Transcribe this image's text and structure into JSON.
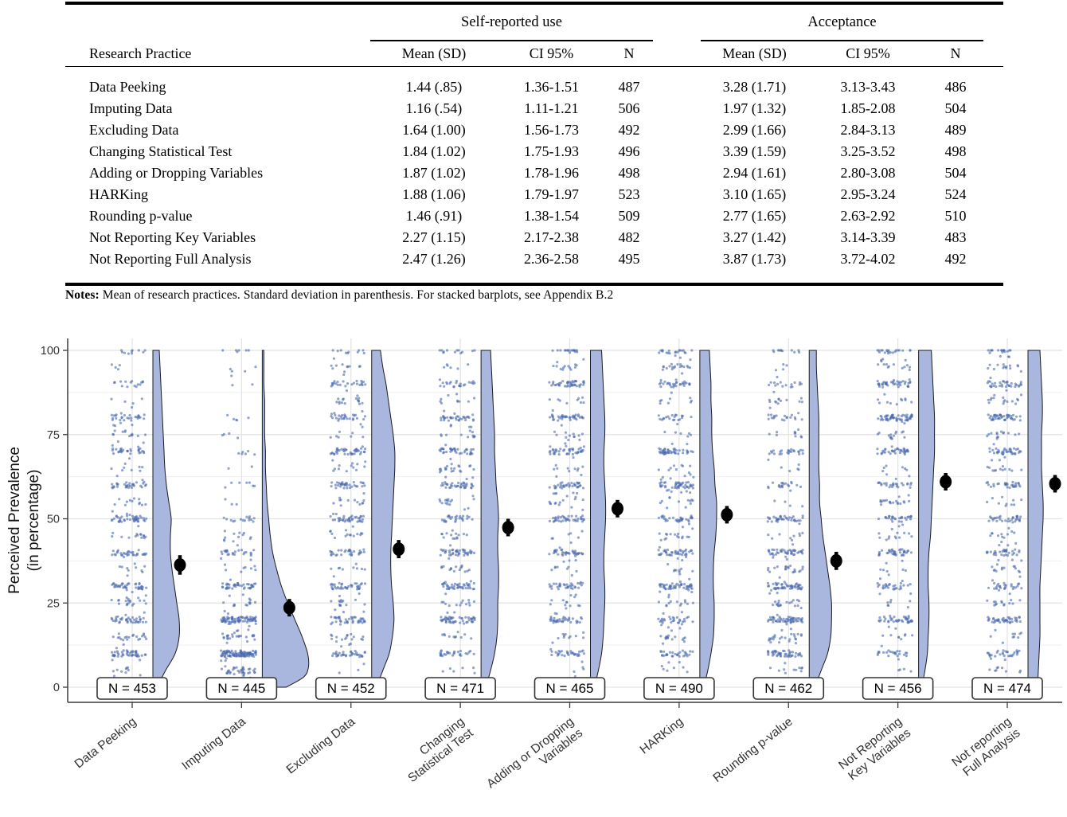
{
  "table": {
    "col_groups": [
      "Self-reported use",
      "Acceptance"
    ],
    "headers": [
      "Research Practice",
      "Mean (SD)",
      "CI 95%",
      "N",
      "Mean (SD)",
      "CI 95%",
      "N"
    ],
    "rows": [
      [
        "Data Peeking",
        "1.44 (.85)",
        "1.36-1.51",
        "487",
        "3.28 (1.71)",
        "3.13-3.43",
        "486"
      ],
      [
        "Imputing Data",
        "1.16 (.54)",
        "1.11-1.21",
        "506",
        "1.97 (1.32)",
        "1.85-2.08",
        "504"
      ],
      [
        "Excluding Data",
        "1.64 (1.00)",
        "1.56-1.73",
        "492",
        "2.99 (1.66)",
        "2.84-3.13",
        "489"
      ],
      [
        "Changing Statistical Test",
        "1.84 (1.02)",
        "1.75-1.93",
        "496",
        "3.39 (1.59)",
        "3.25-3.52",
        "498"
      ],
      [
        "Adding or Dropping Variables",
        "1.87 (1.02)",
        "1.78-1.96",
        "498",
        "2.94 (1.61)",
        "2.80-3.08",
        "504"
      ],
      [
        "HARKing",
        "1.88 (1.06)",
        "1.79-1.97",
        "523",
        "3.10 (1.65)",
        "2.95-3.24",
        "524"
      ],
      [
        "Rounding p-value",
        "1.46 (.91)",
        "1.38-1.54",
        "509",
        "2.77 (1.65)",
        "2.63-2.92",
        "510"
      ],
      [
        "Not Reporting Key Variables",
        "2.27 (1.15)",
        "2.17-2.38",
        "482",
        "3.27 (1.42)",
        "3.14-3.39",
        "483"
      ],
      [
        "Not Reporting Full Analysis",
        "2.47 (1.26)",
        "2.36-2.58",
        "495",
        "3.87 (1.73)",
        "3.72-4.02",
        "492"
      ]
    ],
    "notes_label": "Notes:",
    "notes_text": "Mean of research practices. Standard deviation in parenthesis. For stacked barplots, see Appendix B.2"
  },
  "chart_data": {
    "type": "raincloud (jitter scatter + half-violin density + mean with 95% CI)",
    "ylabel_line1": "Perceived Prevalence",
    "ylabel_line2": "(in percentage)",
    "ylim": [
      0,
      100
    ],
    "yticks": [
      0,
      25,
      50,
      75,
      100
    ],
    "yticks_minor": [
      12.5,
      37.5,
      62.5,
      87.5
    ],
    "grid": "on",
    "colors": {
      "point": "#4a69ad",
      "violin_fill": "#a9b7de",
      "violin_stroke": "#1c1c1c",
      "mean_marker": "#000000",
      "grid_major": "#e3e3e3",
      "grid_minor": "#efefef",
      "axis": "#3a3a3a",
      "label_box_fill": "#ffffff",
      "label_box_stroke": "#333333"
    },
    "groups": [
      {
        "label_lines": [
          "Data Peeking"
        ],
        "n": 453,
        "n_label": "N = 453",
        "mean": 36.3,
        "ci_low": 33.4,
        "ci_high": 39.2,
        "density": [
          [
            0,
            5
          ],
          [
            5,
            16
          ],
          [
            10,
            28
          ],
          [
            15,
            33
          ],
          [
            20,
            33
          ],
          [
            25,
            30
          ],
          [
            30,
            27
          ],
          [
            35,
            24
          ],
          [
            40,
            22
          ],
          [
            45,
            22
          ],
          [
            50,
            23
          ],
          [
            55,
            20
          ],
          [
            60,
            17
          ],
          [
            65,
            15
          ],
          [
            70,
            14
          ],
          [
            75,
            13
          ],
          [
            80,
            12
          ],
          [
            85,
            11
          ],
          [
            90,
            10
          ],
          [
            95,
            9
          ],
          [
            100,
            8
          ]
        ]
      },
      {
        "label_lines": [
          "Imputing Data"
        ],
        "n": 445,
        "n_label": "N = 445",
        "mean": 23.6,
        "ci_low": 21.0,
        "ci_high": 26.2,
        "density": [
          [
            0,
            30
          ],
          [
            3,
            52
          ],
          [
            6,
            58
          ],
          [
            10,
            57
          ],
          [
            15,
            50
          ],
          [
            20,
            41
          ],
          [
            25,
            32
          ],
          [
            30,
            24
          ],
          [
            35,
            18
          ],
          [
            40,
            13
          ],
          [
            45,
            10
          ],
          [
            50,
            8
          ],
          [
            55,
            6
          ],
          [
            60,
            5
          ],
          [
            65,
            4
          ],
          [
            70,
            4
          ],
          [
            75,
            3
          ],
          [
            80,
            3
          ],
          [
            85,
            3
          ],
          [
            90,
            2
          ],
          [
            95,
            2
          ],
          [
            100,
            2
          ]
        ]
      },
      {
        "label_lines": [
          "Excluding Data"
        ],
        "n": 452,
        "n_label": "N = 452",
        "mean": 41.0,
        "ci_low": 38.3,
        "ci_high": 43.7,
        "density": [
          [
            0,
            6
          ],
          [
            5,
            14
          ],
          [
            10,
            22
          ],
          [
            15,
            26
          ],
          [
            20,
            28
          ],
          [
            25,
            27
          ],
          [
            30,
            25
          ],
          [
            35,
            24
          ],
          [
            40,
            24
          ],
          [
            45,
            25
          ],
          [
            50,
            26
          ],
          [
            55,
            27
          ],
          [
            60,
            28
          ],
          [
            65,
            29
          ],
          [
            70,
            29
          ],
          [
            75,
            27
          ],
          [
            80,
            24
          ],
          [
            85,
            21
          ],
          [
            90,
            18
          ],
          [
            95,
            14
          ],
          [
            100,
            11
          ]
        ]
      },
      {
        "label_lines": [
          "Changing",
          "Statistical Test"
        ],
        "n": 471,
        "n_label": "N = 471",
        "mean": 47.4,
        "ci_low": 44.8,
        "ci_high": 50.0,
        "density": [
          [
            0,
            6
          ],
          [
            5,
            12
          ],
          [
            10,
            17
          ],
          [
            15,
            20
          ],
          [
            20,
            21
          ],
          [
            25,
            21
          ],
          [
            30,
            22
          ],
          [
            35,
            22
          ],
          [
            40,
            21
          ],
          [
            45,
            21
          ],
          [
            50,
            22
          ],
          [
            55,
            21
          ],
          [
            60,
            19
          ],
          [
            65,
            18
          ],
          [
            70,
            17
          ],
          [
            75,
            17
          ],
          [
            80,
            16
          ],
          [
            85,
            15
          ],
          [
            90,
            14
          ],
          [
            95,
            13
          ],
          [
            100,
            12
          ]
        ]
      },
      {
        "label_lines": [
          "Adding or Dropping",
          "Variables"
        ],
        "n": 465,
        "n_label": "N = 465",
        "mean": 53.0,
        "ci_low": 50.4,
        "ci_high": 55.6,
        "density": [
          [
            0,
            5
          ],
          [
            5,
            10
          ],
          [
            10,
            14
          ],
          [
            15,
            16
          ],
          [
            20,
            17
          ],
          [
            25,
            18
          ],
          [
            30,
            18
          ],
          [
            35,
            17
          ],
          [
            40,
            17
          ],
          [
            45,
            18
          ],
          [
            50,
            19
          ],
          [
            55,
            19
          ],
          [
            60,
            18
          ],
          [
            65,
            17
          ],
          [
            70,
            17
          ],
          [
            75,
            18
          ],
          [
            80,
            18
          ],
          [
            85,
            17
          ],
          [
            90,
            16
          ],
          [
            95,
            15
          ],
          [
            100,
            14
          ]
        ]
      },
      {
        "label_lines": [
          "HARKing"
        ],
        "n": 490,
        "n_label": "N = 490",
        "mean": 51.2,
        "ci_low": 48.6,
        "ci_high": 53.8,
        "density": [
          [
            0,
            5
          ],
          [
            5,
            10
          ],
          [
            10,
            14
          ],
          [
            15,
            17
          ],
          [
            20,
            18
          ],
          [
            25,
            18
          ],
          [
            30,
            17
          ],
          [
            35,
            17
          ],
          [
            40,
            18
          ],
          [
            45,
            20
          ],
          [
            50,
            21
          ],
          [
            55,
            21
          ],
          [
            60,
            19
          ],
          [
            65,
            18
          ],
          [
            70,
            16
          ],
          [
            75,
            15
          ],
          [
            80,
            15
          ],
          [
            85,
            14
          ],
          [
            90,
            14
          ],
          [
            95,
            13
          ],
          [
            100,
            12
          ]
        ]
      },
      {
        "label_lines": [
          "Rounding p-value"
        ],
        "n": 462,
        "n_label": "N = 462",
        "mean": 37.5,
        "ci_low": 34.8,
        "ci_high": 40.2,
        "density": [
          [
            0,
            7
          ],
          [
            5,
            15
          ],
          [
            10,
            23
          ],
          [
            15,
            27
          ],
          [
            20,
            28
          ],
          [
            25,
            28
          ],
          [
            30,
            26
          ],
          [
            35,
            23
          ],
          [
            40,
            20
          ],
          [
            45,
            17
          ],
          [
            50,
            15
          ],
          [
            55,
            13
          ],
          [
            60,
            13
          ],
          [
            65,
            12
          ],
          [
            70,
            12
          ],
          [
            75,
            12
          ],
          [
            80,
            12
          ],
          [
            85,
            11
          ],
          [
            90,
            10
          ],
          [
            95,
            9
          ],
          [
            100,
            9
          ]
        ]
      },
      {
        "label_lines": [
          "Not Reporting",
          "Key Variables"
        ],
        "n": 456,
        "n_label": "N = 456",
        "mean": 61.0,
        "ci_low": 58.4,
        "ci_high": 63.6,
        "density": [
          [
            0,
            4
          ],
          [
            5,
            8
          ],
          [
            10,
            11
          ],
          [
            15,
            12
          ],
          [
            20,
            13
          ],
          [
            25,
            13
          ],
          [
            30,
            12
          ],
          [
            35,
            12
          ],
          [
            40,
            13
          ],
          [
            45,
            15
          ],
          [
            50,
            16
          ],
          [
            55,
            17
          ],
          [
            60,
            18
          ],
          [
            65,
            19
          ],
          [
            70,
            20
          ],
          [
            75,
            20
          ],
          [
            80,
            20
          ],
          [
            85,
            19
          ],
          [
            90,
            18
          ],
          [
            95,
            17
          ],
          [
            100,
            16
          ]
        ]
      },
      {
        "label_lines": [
          "Not reporting",
          "Full Analysis"
        ],
        "n": 474,
        "n_label": "N = 474",
        "mean": 60.4,
        "ci_low": 57.8,
        "ci_high": 63.0,
        "density": [
          [
            0,
            12
          ],
          [
            5,
            13
          ],
          [
            10,
            14
          ],
          [
            15,
            15
          ],
          [
            20,
            15
          ],
          [
            25,
            15
          ],
          [
            30,
            15
          ],
          [
            35,
            16
          ],
          [
            40,
            17
          ],
          [
            45,
            18
          ],
          [
            50,
            19
          ],
          [
            55,
            19
          ],
          [
            60,
            18
          ],
          [
            65,
            17
          ],
          [
            70,
            17
          ],
          [
            75,
            17
          ],
          [
            80,
            18
          ],
          [
            85,
            18
          ],
          [
            90,
            17
          ],
          [
            95,
            16
          ],
          [
            100,
            15
          ]
        ]
      }
    ]
  }
}
